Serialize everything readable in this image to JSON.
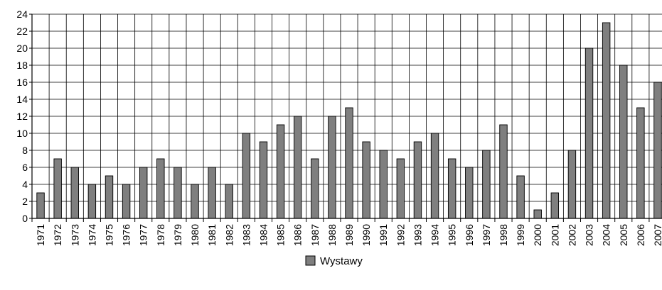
{
  "chart_data": {
    "type": "bar",
    "categories": [
      "1971",
      "1972",
      "1973",
      "1974",
      "1975",
      "1976",
      "1977",
      "1978",
      "1979",
      "1980",
      "1981",
      "1982",
      "1983",
      "1984",
      "1985",
      "1986",
      "1987",
      "1988",
      "1989",
      "1990",
      "1991",
      "1992",
      "1993",
      "1994",
      "1995",
      "1996",
      "1997",
      "1998",
      "1999",
      "2000",
      "2001",
      "2002",
      "2003",
      "2004",
      "2005",
      "2006",
      "2007"
    ],
    "series": [
      {
        "name": "Wystawy",
        "values": [
          3,
          7,
          6,
          4,
          5,
          4,
          6,
          7,
          6,
          4,
          6,
          4,
          10,
          9,
          11,
          12,
          7,
          12,
          13,
          9,
          8,
          7,
          9,
          10,
          7,
          6,
          8,
          11,
          5,
          1,
          3,
          8,
          20,
          23,
          18,
          13,
          16
        ]
      }
    ],
    "ylim": [
      0,
      24
    ],
    "yticks": [
      0,
      2,
      4,
      6,
      8,
      10,
      12,
      14,
      16,
      18,
      20,
      22,
      24
    ],
    "grid": true,
    "legend_position": "bottom",
    "bar_color": "#7f7f7f",
    "title": "",
    "xlabel": "",
    "ylabel": ""
  }
}
